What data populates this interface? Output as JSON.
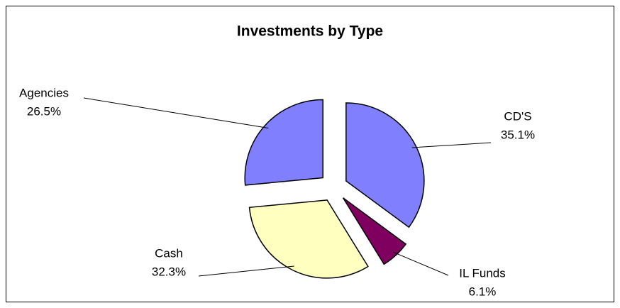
{
  "chart_data": {
    "type": "pie",
    "title": "Investments by Type",
    "categories": [
      "CD'S",
      "IL Funds",
      "Cash",
      "Agencies"
    ],
    "values": [
      35.1,
      6.1,
      32.3,
      26.5
    ],
    "value_labels": [
      "35.1%",
      "6.1%",
      "32.3%",
      "26.5%"
    ],
    "colors": [
      "#8080ff",
      "#800060",
      "#ffffc0",
      "#8080ff"
    ]
  }
}
